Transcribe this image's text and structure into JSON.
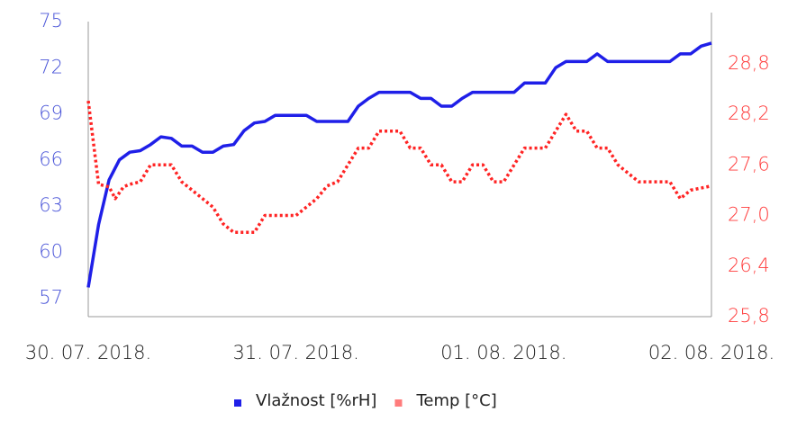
{
  "chart_data": {
    "type": "line",
    "xlim": [
      0,
      3
    ],
    "xticks": [
      {
        "value": 0,
        "label": "30. 07. 2018."
      },
      {
        "value": 1,
        "label": "31. 07. 2018."
      },
      {
        "value": 2,
        "label": "01. 08. 2018."
      },
      {
        "value": 3,
        "label": "02. 08. 2018."
      }
    ],
    "ylim": [
      55.8,
      75
    ],
    "yticks": [
      57,
      60,
      63,
      66,
      69,
      72,
      75
    ],
    "y2lim": [
      25.8,
      29.3
    ],
    "y2ticks": [
      {
        "value": 25.8,
        "label": "25,8"
      },
      {
        "value": 26.4,
        "label": "26,4"
      },
      {
        "value": 27.0,
        "label": "27,0"
      },
      {
        "value": 27.6,
        "label": "27,6"
      },
      {
        "value": 28.2,
        "label": "28,2"
      },
      {
        "value": 28.8,
        "label": "28,8"
      }
    ],
    "ytick_color": "#4a55d8",
    "y2tick_color": "#ff3b3b",
    "series": [
      {
        "name": "Vlažnost [%rH]",
        "color": "#1f1fe8",
        "dash": false,
        "x": [
          0,
          0.05,
          0.1,
          0.15,
          0.2,
          0.25,
          0.3,
          0.35,
          0.4,
          0.45,
          0.5,
          0.55,
          0.6,
          0.65,
          0.7,
          0.75,
          0.8,
          0.85,
          0.9,
          1.0,
          1.05,
          1.1,
          1.2,
          1.25,
          1.3,
          1.35,
          1.4,
          1.5,
          1.55,
          1.6,
          1.65,
          1.7,
          1.75,
          1.8,
          1.85,
          2.0,
          2.05,
          2.1,
          2.2,
          2.25,
          2.3,
          2.4,
          2.45,
          2.5,
          2.8,
          2.85,
          2.9,
          2.95,
          3.0
        ],
        "values": [
          57.7,
          61.8,
          64.7,
          66.0,
          66.5,
          66.6,
          67.0,
          67.5,
          67.4,
          66.9,
          66.9,
          66.5,
          66.5,
          66.9,
          67.0,
          67.9,
          68.4,
          68.5,
          68.9,
          68.9,
          68.9,
          68.5,
          68.5,
          68.5,
          69.5,
          70.0,
          70.4,
          70.4,
          70.4,
          70.0,
          70.0,
          69.5,
          69.5,
          70.0,
          70.4,
          70.4,
          70.4,
          71.0,
          71.0,
          72.0,
          72.4,
          72.4,
          72.9,
          72.4,
          72.4,
          72.9,
          72.9,
          73.4,
          73.6
        ]
      },
      {
        "name": "Temp [°C]",
        "color": "#ff2424",
        "dash": true,
        "axis": "y2",
        "x": [
          0,
          0.05,
          0.1,
          0.13,
          0.17,
          0.2,
          0.25,
          0.3,
          0.4,
          0.45,
          0.5,
          0.55,
          0.6,
          0.65,
          0.7,
          0.8,
          0.85,
          1.0,
          1.05,
          1.1,
          1.15,
          1.2,
          1.25,
          1.3,
          1.35,
          1.4,
          1.45,
          1.5,
          1.55,
          1.6,
          1.65,
          1.7,
          1.75,
          1.8,
          1.85,
          1.9,
          1.95,
          2.0,
          2.05,
          2.1,
          2.2,
          2.25,
          2.3,
          2.35,
          2.4,
          2.45,
          2.5,
          2.55,
          2.6,
          2.65,
          2.8,
          2.85,
          2.9,
          3.0
        ],
        "values": [
          28.36,
          27.37,
          27.34,
          27.2,
          27.34,
          27.37,
          27.4,
          27.6,
          27.6,
          27.4,
          27.3,
          27.2,
          27.1,
          26.9,
          26.8,
          26.8,
          27.0,
          27.0,
          27.1,
          27.2,
          27.35,
          27.4,
          27.6,
          27.8,
          27.8,
          28.0,
          28.0,
          28.0,
          27.8,
          27.8,
          27.6,
          27.6,
          27.4,
          27.4,
          27.6,
          27.6,
          27.4,
          27.4,
          27.6,
          27.8,
          27.8,
          28.0,
          28.2,
          28.0,
          28.0,
          27.8,
          27.8,
          27.6,
          27.5,
          27.4,
          27.4,
          27.2,
          27.3,
          27.35
        ]
      }
    ]
  }
}
